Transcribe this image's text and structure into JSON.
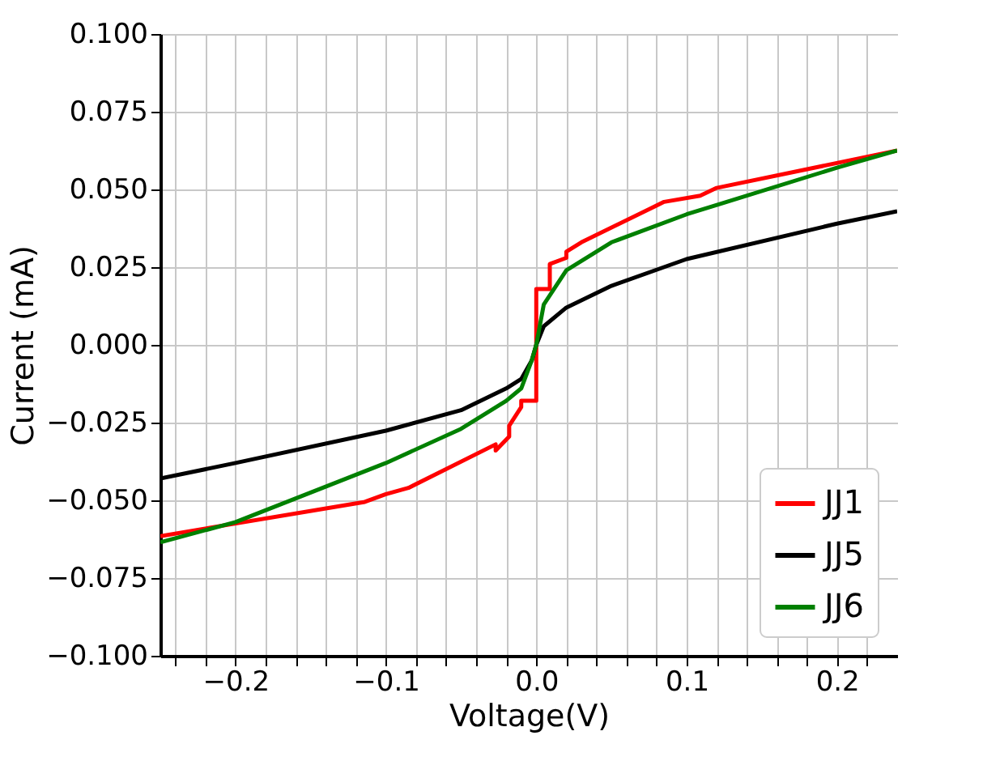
{
  "chart_data": {
    "type": "line",
    "xlabel": "Voltage(V)",
    "ylabel": "Current (mA)",
    "xlim": [
      -0.25,
      0.24
    ],
    "ylim": [
      -0.1,
      0.1
    ],
    "xticks": [
      {
        "value": -0.24,
        "label": null
      },
      {
        "value": -0.22,
        "label": null
      },
      {
        "value": -0.2,
        "label": "−0.2"
      },
      {
        "value": -0.18,
        "label": null
      },
      {
        "value": -0.16,
        "label": null
      },
      {
        "value": -0.14,
        "label": null
      },
      {
        "value": -0.12,
        "label": null
      },
      {
        "value": -0.1,
        "label": "−0.1"
      },
      {
        "value": -0.08,
        "label": null
      },
      {
        "value": -0.06,
        "label": null
      },
      {
        "value": -0.04,
        "label": null
      },
      {
        "value": -0.02,
        "label": null
      },
      {
        "value": 0,
        "label": "0.0"
      },
      {
        "value": 0.02,
        "label": null
      },
      {
        "value": 0.04,
        "label": null
      },
      {
        "value": 0.06,
        "label": null
      },
      {
        "value": 0.08,
        "label": null
      },
      {
        "value": 0.1,
        "label": "0.1"
      },
      {
        "value": 0.12,
        "label": null
      },
      {
        "value": 0.14,
        "label": null
      },
      {
        "value": 0.16,
        "label": null
      },
      {
        "value": 0.18,
        "label": null
      },
      {
        "value": 0.2,
        "label": "0.2"
      },
      {
        "value": 0.22,
        "label": null
      }
    ],
    "yticks": [
      {
        "value": -0.1,
        "label": "−0.100"
      },
      {
        "value": -0.075,
        "label": "−0.075"
      },
      {
        "value": -0.05,
        "label": "−0.050"
      },
      {
        "value": -0.025,
        "label": "−0.025"
      },
      {
        "value": 0,
        "label": "0.000"
      },
      {
        "value": 0.025,
        "label": "0.025"
      },
      {
        "value": 0.05,
        "label": "0.050"
      },
      {
        "value": 0.075,
        "label": "0.075"
      },
      {
        "value": 0.1,
        "label": "0.100"
      }
    ],
    "grid": true,
    "legend": "bottom right",
    "marker": "none",
    "line_style": "solid",
    "series": [
      {
        "name": "JJ1",
        "color": "#ff0000",
        "x": [
          -0.25,
          -0.114,
          -0.1,
          -0.085,
          -0.027,
          -0.027,
          -0.018,
          -0.018,
          -0.01,
          -0.01,
          0,
          0,
          0.009,
          0.009,
          0.02,
          0.02,
          0.03,
          0.085,
          0.109,
          0.12,
          0.24
        ],
        "values": [
          -0.0615,
          -0.0505,
          -0.048,
          -0.046,
          -0.032,
          -0.034,
          -0.0295,
          -0.026,
          -0.02,
          -0.018,
          -0.018,
          0.018,
          0.018,
          0.026,
          0.028,
          0.03,
          0.033,
          0.046,
          0.048,
          0.0505,
          0.0625
        ]
      },
      {
        "name": "JJ5",
        "color": "#000000",
        "x": [
          -0.25,
          -0.2,
          -0.1,
          -0.05,
          -0.02,
          -0.01,
          -0.003,
          0,
          0.005,
          0.02,
          0.05,
          0.1,
          0.2,
          0.24
        ],
        "values": [
          -0.043,
          -0.038,
          -0.0276,
          -0.021,
          -0.014,
          -0.011,
          -0.005,
          0,
          0.006,
          0.012,
          0.019,
          0.0276,
          0.039,
          0.043
        ]
      },
      {
        "name": "JJ6",
        "color": "#008000",
        "x": [
          -0.25,
          -0.2,
          -0.1,
          -0.05,
          -0.02,
          -0.01,
          -0.003,
          0,
          0.005,
          0.02,
          0.05,
          0.1,
          0.2,
          0.24
        ],
        "values": [
          -0.0635,
          -0.057,
          -0.038,
          -0.027,
          -0.018,
          -0.014,
          -0.005,
          0,
          0.013,
          0.024,
          0.033,
          0.042,
          0.057,
          0.0625
        ]
      }
    ]
  }
}
